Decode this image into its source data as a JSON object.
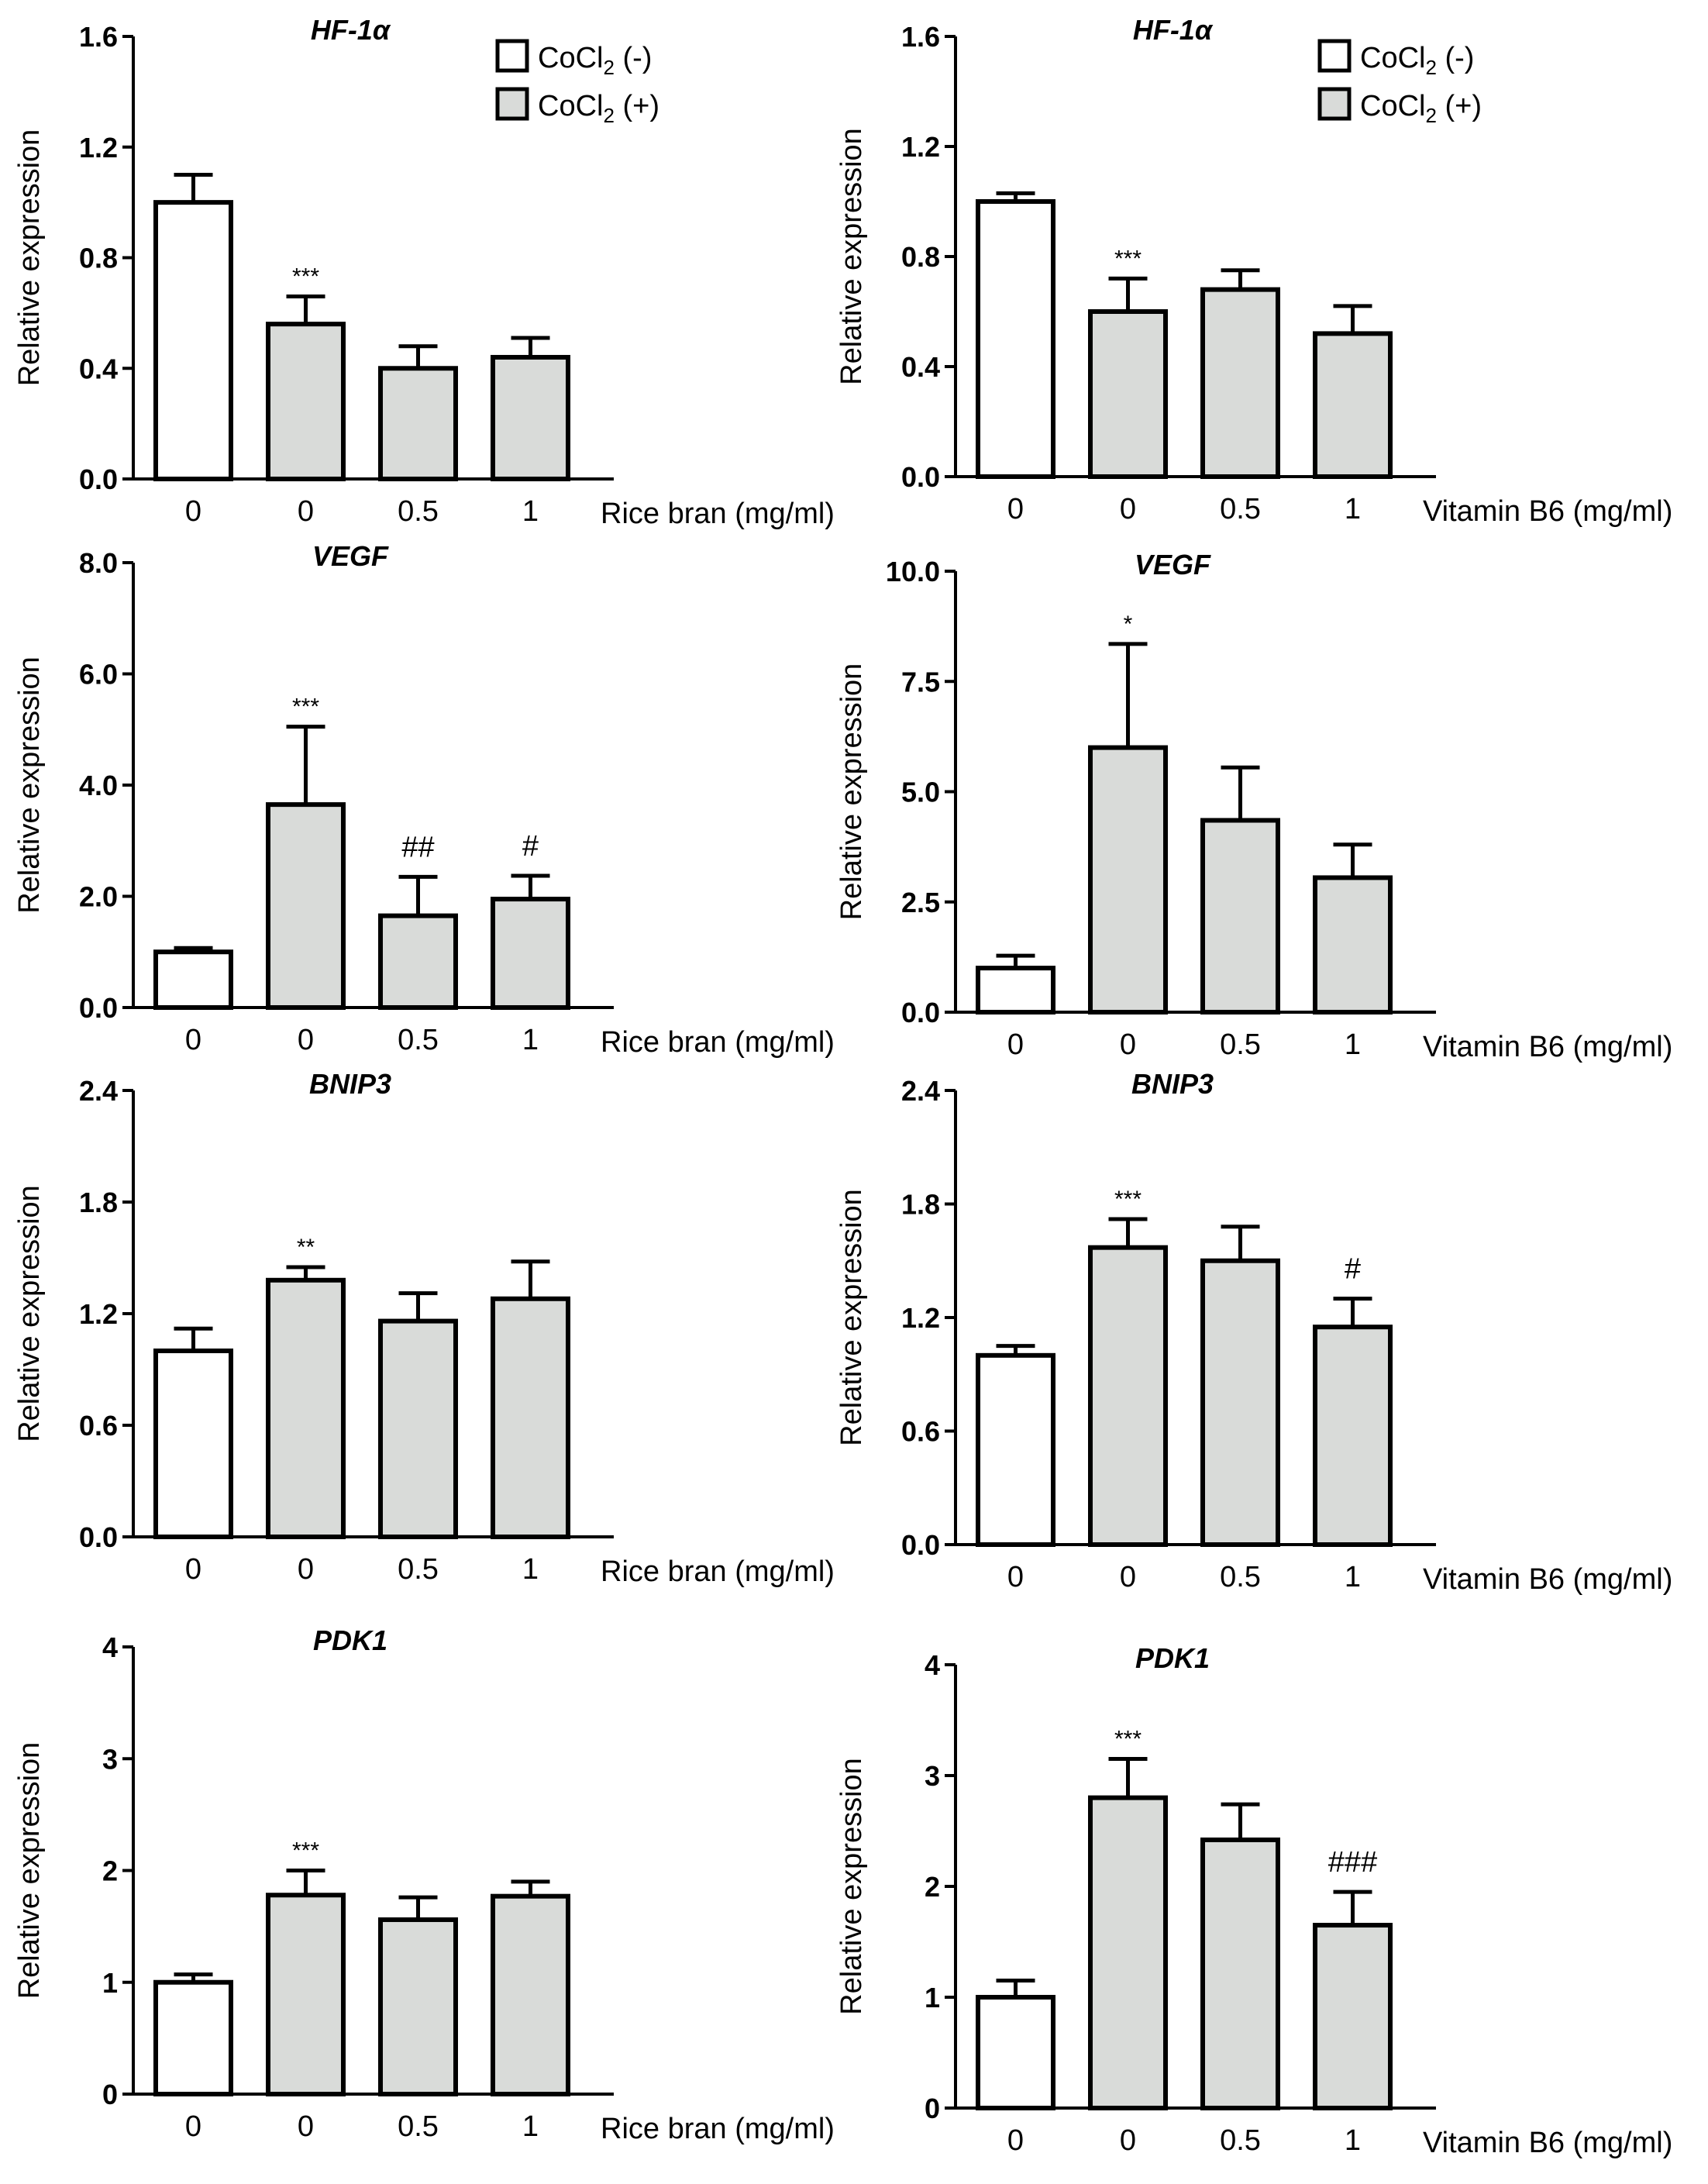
{
  "colors": {
    "ctrl_fill": "#ffffff",
    "treat_fill": "#d9dbd9",
    "stroke": "#000000"
  },
  "legend": {
    "entries": [
      {
        "prefix": "CoCl",
        "sub": "2",
        "suffix": " (-)",
        "fill": "#ffffff"
      },
      {
        "prefix": "CoCl",
        "sub": "2",
        "suffix": " (+)",
        "fill": "#d9dbd9"
      }
    ]
  },
  "chart_data": [
    {
      "type": "bar",
      "title": "HF-1α",
      "ylabel": "Relative expression",
      "xlabel": "Rice bran (mg/ml)",
      "categories": [
        "0",
        "0",
        "0.5",
        "1"
      ],
      "ylim": [
        0,
        1.6
      ],
      "yticks": [
        "0.0",
        "0.4",
        "0.8",
        "1.2",
        "1.6"
      ],
      "values": [
        1.0,
        0.56,
        0.4,
        0.44
      ],
      "errors": [
        0.1,
        0.1,
        0.08,
        0.07
      ],
      "annotations": [
        "",
        "***",
        "",
        ""
      ],
      "legend": true
    },
    {
      "type": "bar",
      "title": "HF-1α",
      "ylabel": "Relative expression",
      "xlabel": "Vitamin B6 (mg/ml)",
      "categories": [
        "0",
        "0",
        "0.5",
        "1"
      ],
      "ylim": [
        0,
        1.6
      ],
      "yticks": [
        "0.0",
        "0.4",
        "0.8",
        "1.2",
        "1.6"
      ],
      "values": [
        1.0,
        0.6,
        0.68,
        0.52
      ],
      "errors": [
        0.03,
        0.12,
        0.07,
        0.1
      ],
      "annotations": [
        "",
        "***",
        "",
        ""
      ],
      "legend": true
    },
    {
      "type": "bar",
      "title": "VEGF",
      "ylabel": "Relative expression",
      "xlabel": "Rice bran (mg/ml)",
      "categories": [
        "0",
        "0",
        "0.5",
        "1"
      ],
      "ylim": [
        0,
        8.0
      ],
      "yticks": [
        "0.0",
        "2.0",
        "4.0",
        "6.0",
        "8.0"
      ],
      "values": [
        1.0,
        3.65,
        1.65,
        1.95
      ],
      "errors": [
        0.07,
        1.4,
        0.7,
        0.42
      ],
      "annotations": [
        "",
        "***",
        "##",
        "#"
      ],
      "legend": false
    },
    {
      "type": "bar",
      "title": "VEGF",
      "ylabel": "Relative expression",
      "xlabel": "Vitamin B6 (mg/ml)",
      "categories": [
        "0",
        "0",
        "0.5",
        "1"
      ],
      "ylim": [
        0,
        10.0
      ],
      "yticks": [
        "0.0",
        "2.5",
        "5.0",
        "7.5",
        "10.0"
      ],
      "values": [
        1.0,
        6.0,
        4.35,
        3.05
      ],
      "errors": [
        0.28,
        2.35,
        1.2,
        0.75
      ],
      "annotations": [
        "",
        "*",
        "",
        ""
      ],
      "legend": false
    },
    {
      "type": "bar",
      "title": "BNIP3",
      "ylabel": "Relative expression",
      "xlabel": "Rice bran (mg/ml)",
      "categories": [
        "0",
        "0",
        "0.5",
        "1"
      ],
      "ylim": [
        0,
        2.4
      ],
      "yticks": [
        "0.0",
        "0.6",
        "1.2",
        "1.8",
        "2.4"
      ],
      "values": [
        1.0,
        1.38,
        1.16,
        1.28
      ],
      "errors": [
        0.12,
        0.07,
        0.15,
        0.2
      ],
      "annotations": [
        "",
        "**",
        "",
        ""
      ],
      "legend": false
    },
    {
      "type": "bar",
      "title": "BNIP3",
      "ylabel": "Relative expression",
      "xlabel": "Vitamin B6 (mg/ml)",
      "categories": [
        "0",
        "0",
        "0.5",
        "1"
      ],
      "ylim": [
        0,
        2.4
      ],
      "yticks": [
        "0.0",
        "0.6",
        "1.2",
        "1.8",
        "2.4"
      ],
      "values": [
        1.0,
        1.57,
        1.5,
        1.15
      ],
      "errors": [
        0.05,
        0.15,
        0.18,
        0.15
      ],
      "annotations": [
        "",
        "***",
        "",
        "#"
      ],
      "legend": false
    },
    {
      "type": "bar",
      "title": "PDK1",
      "ylabel": "Relative expression",
      "xlabel": "Rice bran (mg/ml)",
      "categories": [
        "0",
        "0",
        "0.5",
        "1"
      ],
      "ylim": [
        0,
        4
      ],
      "yticks": [
        "0",
        "1",
        "2",
        "3",
        "4"
      ],
      "values": [
        1.0,
        1.78,
        1.56,
        1.77
      ],
      "errors": [
        0.07,
        0.22,
        0.2,
        0.13
      ],
      "annotations": [
        "",
        "***",
        "",
        ""
      ],
      "legend": false
    },
    {
      "type": "bar",
      "title": "PDK1",
      "ylabel": "Relative expression",
      "xlabel": "Vitamin B6 (mg/ml)",
      "categories": [
        "0",
        "0",
        "0.5",
        "1"
      ],
      "ylim": [
        0,
        4
      ],
      "yticks": [
        "0",
        "1",
        "2",
        "3",
        "4"
      ],
      "values": [
        1.0,
        2.8,
        2.42,
        1.65
      ],
      "errors": [
        0.15,
        0.35,
        0.32,
        0.3
      ],
      "annotations": [
        "",
        "***",
        "",
        "###"
      ],
      "legend": false
    }
  ]
}
